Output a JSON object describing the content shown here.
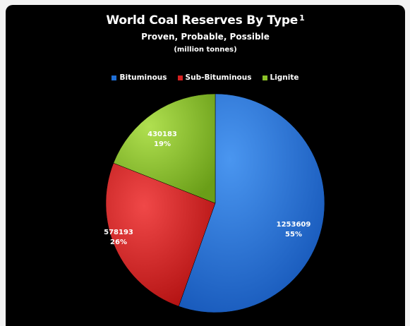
{
  "chart_data": {
    "type": "pie",
    "title": "World Coal Reserves By Type",
    "title_footnote": "1",
    "subtitle": "Proven, Probable,  Possible",
    "units": "(million tonnes)",
    "legend_position": "top",
    "categories": [
      "Bituminous",
      "Sub-Bituminous",
      "Lignite"
    ],
    "values": [
      1253609,
      578193,
      430183
    ],
    "percent_labels": [
      "55%",
      "26%",
      "19%"
    ],
    "value_labels": [
      "1253609",
      "578193",
      "430183"
    ],
    "colors": [
      "#1f6fd6",
      "#d42020",
      "#8cc228"
    ],
    "start_angle_deg": 0,
    "direction": "clockwise"
  },
  "colors": {
    "background": "#000000",
    "frame": "#f2f2f2",
    "text": "#ffffff"
  }
}
